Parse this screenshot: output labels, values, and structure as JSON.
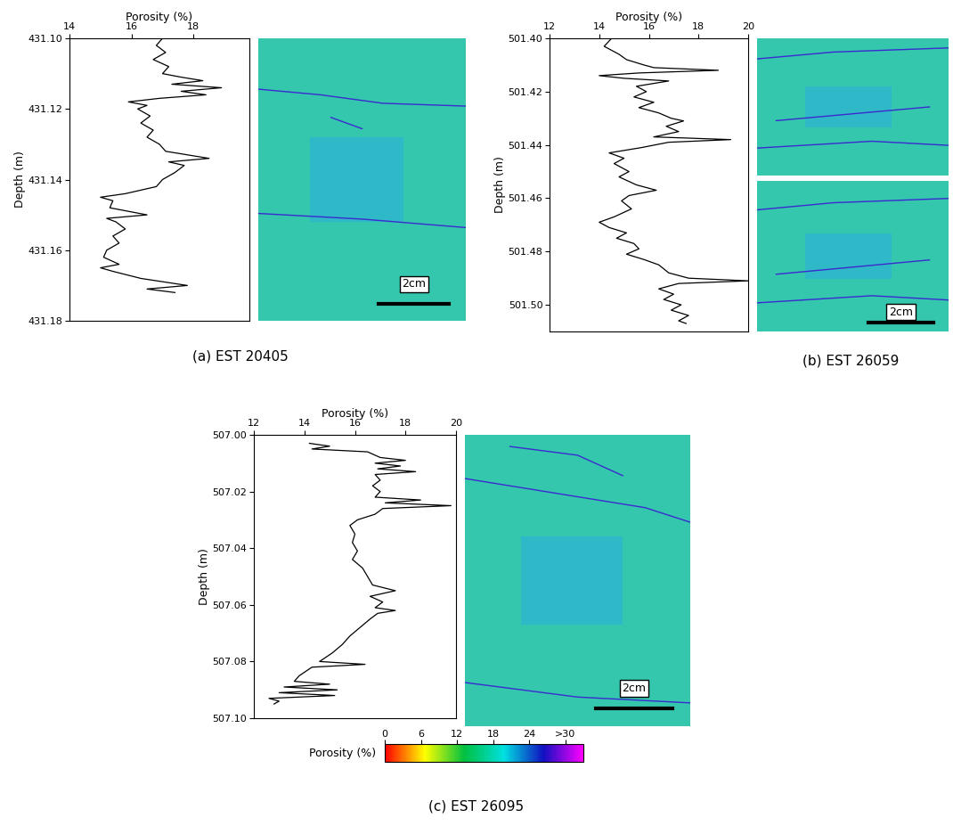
{
  "chart_data": [
    {
      "type": "line",
      "title": "(a) EST 20405",
      "xlabel": "Porosity (%)",
      "ylabel": "Depth (m)",
      "color": "#000000",
      "x": [
        17.0,
        16.8,
        17.1,
        16.7,
        17.2,
        17.0,
        17.6,
        18.3,
        17.3,
        18.9,
        17.6,
        18.4,
        16.9,
        15.9,
        16.5,
        16.2,
        16.6,
        16.3,
        16.7,
        16.5,
        16.9,
        17.1,
        18.5,
        17.2,
        17.7,
        17.4,
        17.0,
        16.8,
        15.8,
        15.0,
        15.4,
        15.3,
        16.5,
        15.2,
        15.5,
        15.8,
        15.4,
        15.6,
        15.2,
        15.1,
        15.6,
        15.0,
        15.4,
        16.3,
        17.8,
        16.5,
        17.4
      ],
      "y": [
        431.1,
        431.102,
        431.104,
        431.106,
        431.108,
        431.11,
        431.111,
        431.112,
        431.113,
        431.114,
        431.115,
        431.116,
        431.117,
        431.118,
        431.119,
        431.12,
        431.122,
        431.124,
        431.126,
        431.128,
        431.13,
        431.132,
        431.134,
        431.135,
        431.136,
        431.138,
        431.14,
        431.142,
        431.144,
        431.145,
        431.146,
        431.148,
        431.15,
        431.151,
        431.152,
        431.154,
        431.156,
        431.158,
        431.16,
        431.162,
        431.164,
        431.165,
        431.166,
        431.168,
        431.17,
        431.171,
        431.172
      ],
      "xlim": [
        14,
        19.8
      ],
      "xticks": [
        14,
        16,
        18
      ],
      "ylim": [
        431.18,
        431.1
      ],
      "yticks": [
        {
          "value": 431.1,
          "label": "431.10"
        },
        {
          "value": 431.12,
          "label": "431.12"
        },
        {
          "value": 431.14,
          "label": "431.14"
        },
        {
          "value": 431.16,
          "label": "431.16"
        },
        {
          "value": 431.18,
          "label": "431.18"
        }
      ],
      "annotations": [
        "2cm"
      ]
    },
    {
      "type": "line",
      "title": "(b) EST 26059",
      "xlabel": "Porosity (%)",
      "ylabel": "Depth (m)",
      "color": "#000000",
      "x": [
        14.5,
        14.2,
        14.8,
        15.1,
        15.8,
        16.2,
        18.8,
        15.6,
        14.0,
        15.0,
        16.8,
        15.5,
        15.9,
        15.4,
        16.2,
        15.6,
        16.4,
        16.9,
        17.4,
        16.7,
        17.2,
        16.2,
        19.3,
        16.8,
        15.7,
        14.4,
        15.0,
        14.6,
        15.2,
        14.8,
        15.5,
        16.3,
        15.2,
        14.9,
        15.3,
        14.6,
        14.0,
        14.4,
        15.1,
        14.7,
        15.4,
        15.6,
        15.1,
        15.8,
        16.4,
        16.8,
        17.6,
        20.0,
        17.2,
        16.4,
        17.0,
        16.6,
        17.3,
        16.9,
        17.6,
        17.2,
        17.5
      ],
      "y": [
        501.4,
        501.403,
        501.406,
        501.408,
        501.41,
        501.411,
        501.412,
        501.413,
        501.414,
        501.415,
        501.416,
        501.418,
        501.42,
        501.422,
        501.424,
        501.426,
        501.428,
        501.43,
        501.431,
        501.433,
        501.435,
        501.437,
        501.438,
        501.439,
        501.441,
        501.443,
        501.445,
        501.447,
        501.45,
        501.452,
        501.455,
        501.457,
        501.459,
        501.461,
        501.464,
        501.467,
        501.469,
        501.471,
        501.473,
        501.475,
        501.477,
        501.479,
        501.481,
        501.483,
        501.485,
        501.488,
        501.49,
        501.491,
        501.492,
        501.494,
        501.496,
        501.498,
        501.5,
        501.502,
        501.504,
        501.506,
        501.507
      ],
      "xlim": [
        12,
        20
      ],
      "xticks": [
        12,
        14,
        16,
        18,
        20
      ],
      "ylim": [
        501.51,
        501.4
      ],
      "yticks": [
        {
          "value": 501.4,
          "label": "501.40"
        },
        {
          "value": 501.42,
          "label": "501.42"
        },
        {
          "value": 501.44,
          "label": "501.44"
        },
        {
          "value": 501.46,
          "label": "501.46"
        },
        {
          "value": 501.48,
          "label": "501.48"
        },
        {
          "value": 501.5,
          "label": "501.50"
        }
      ],
      "annotations": [
        "2cm"
      ]
    },
    {
      "type": "line",
      "title": "(c) EST 26095",
      "xlabel": "Porosity (%)",
      "ylabel": "Depth (m)",
      "color": "#000000",
      "x": [
        14.2,
        15.0,
        14.3,
        16.5,
        17.0,
        18.0,
        16.8,
        17.8,
        16.9,
        18.4,
        16.8,
        17.0,
        16.7,
        17.0,
        16.8,
        18.6,
        17.2,
        19.8,
        17.1,
        16.8,
        16.1,
        15.8,
        16.0,
        15.9,
        16.1,
        15.9,
        16.3,
        16.5,
        16.7,
        17.6,
        16.6,
        17.1,
        16.8,
        17.6,
        16.9,
        16.6,
        16.2,
        15.8,
        15.5,
        15.1,
        14.6,
        16.4,
        14.3,
        13.8,
        13.6,
        15.0,
        13.2,
        15.3,
        13.0,
        15.2,
        12.6,
        13.0,
        12.8
      ],
      "y": [
        507.003,
        507.004,
        507.005,
        507.006,
        507.008,
        507.009,
        507.01,
        507.011,
        507.012,
        507.013,
        507.014,
        507.016,
        507.018,
        507.02,
        507.022,
        507.023,
        507.024,
        507.025,
        507.026,
        507.028,
        507.03,
        507.032,
        507.035,
        507.038,
        507.041,
        507.044,
        507.047,
        507.05,
        507.053,
        507.055,
        507.057,
        507.059,
        507.061,
        507.062,
        507.063,
        507.065,
        507.068,
        507.071,
        507.074,
        507.077,
        507.08,
        507.081,
        507.082,
        507.085,
        507.087,
        507.088,
        507.089,
        507.09,
        507.091,
        507.092,
        507.093,
        507.094,
        507.095
      ],
      "xlim": [
        12,
        20
      ],
      "xticks": [
        12,
        14,
        16,
        18,
        20
      ],
      "ylim": [
        507.1,
        507.0
      ],
      "yticks": [
        {
          "value": 507.0,
          "label": "507.00"
        },
        {
          "value": 507.02,
          "label": "507.02"
        },
        {
          "value": 507.04,
          "label": "507.04"
        },
        {
          "value": 507.06,
          "label": "507.06"
        },
        {
          "value": 507.08,
          "label": "507.08"
        },
        {
          "value": 507.1,
          "label": "507.10"
        }
      ],
      "annotations": [
        "2cm"
      ]
    }
  ],
  "colorbar": {
    "label": "Porosity (%)",
    "range": [
      0,
      33
    ],
    "ticks": [
      0,
      6,
      12,
      18,
      24,
      {
        "value": 30,
        "label": ">30"
      }
    ],
    "colors": [
      "#ff0000",
      "#ffff00",
      "#00c040",
      "#00e0e0",
      "#1010c0",
      "#ff00ff"
    ]
  }
}
